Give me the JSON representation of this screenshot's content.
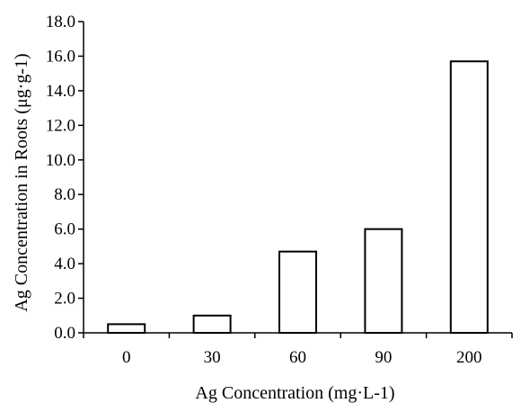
{
  "chart_data": {
    "type": "bar",
    "title": "",
    "xlabel": "Ag Concentration (mg·L-1)",
    "ylabel": "Ag Concentration in Roots (μg·g-1)",
    "categories": [
      "0",
      "30",
      "60",
      "90",
      "200"
    ],
    "values": [
      0.5,
      1.0,
      4.7,
      6.0,
      15.7
    ],
    "ylim": [
      0,
      18
    ],
    "yticks": [
      "0.0",
      "2.0",
      "4.0",
      "6.0",
      "8.0",
      "10.0",
      "12.0",
      "14.0",
      "16.0",
      "18.0"
    ],
    "grid": false,
    "legend": "none",
    "bar_fill": "#ffffff",
    "bar_stroke": "#000000"
  }
}
